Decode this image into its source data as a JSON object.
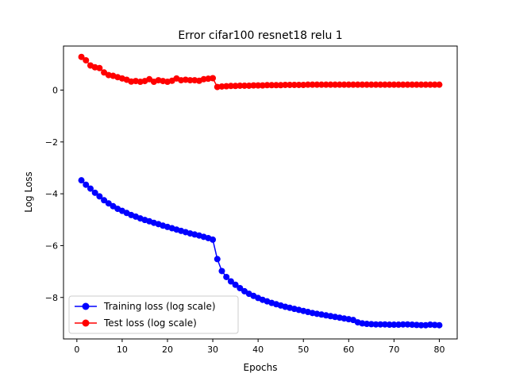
{
  "chart_data": {
    "type": "line",
    "title": "Error cifar100 resnet18 relu 1",
    "xlabel": "Epochs",
    "ylabel": "Log Loss",
    "xlim": [
      -2.95,
      83.95
    ],
    "ylim": [
      -9.6,
      1.7
    ],
    "xticks": [
      0,
      10,
      20,
      30,
      40,
      50,
      60,
      70,
      80
    ],
    "yticks": [
      0,
      -2,
      -4,
      -6,
      -8
    ],
    "ytick_labels": [
      "0",
      "−2",
      "−4",
      "−6",
      "−8"
    ],
    "grid": false,
    "legend_position": "lower-left",
    "x": [
      1,
      2,
      3,
      4,
      5,
      6,
      7,
      8,
      9,
      10,
      11,
      12,
      13,
      14,
      15,
      16,
      17,
      18,
      19,
      20,
      21,
      22,
      23,
      24,
      25,
      26,
      27,
      28,
      29,
      30,
      31,
      32,
      33,
      34,
      35,
      36,
      37,
      38,
      39,
      40,
      41,
      42,
      43,
      44,
      45,
      46,
      47,
      48,
      49,
      50,
      51,
      52,
      53,
      54,
      55,
      56,
      57,
      58,
      59,
      60,
      61,
      62,
      63,
      64,
      65,
      66,
      67,
      68,
      69,
      70,
      71,
      72,
      73,
      74,
      75,
      76,
      77,
      78,
      79,
      80
    ],
    "series": [
      {
        "name": "Training loss (log scale)",
        "color": "#0000ff",
        "values": [
          -3.48,
          -3.65,
          -3.8,
          -3.96,
          -4.1,
          -4.25,
          -4.37,
          -4.48,
          -4.58,
          -4.66,
          -4.74,
          -4.82,
          -4.88,
          -4.95,
          -5.01,
          -5.06,
          -5.12,
          -5.17,
          -5.23,
          -5.28,
          -5.33,
          -5.38,
          -5.43,
          -5.48,
          -5.53,
          -5.57,
          -5.61,
          -5.66,
          -5.71,
          -5.77,
          -6.52,
          -6.98,
          -7.21,
          -7.38,
          -7.51,
          -7.64,
          -7.76,
          -7.86,
          -7.94,
          -8.02,
          -8.09,
          -8.15,
          -8.21,
          -8.26,
          -8.31,
          -8.36,
          -8.4,
          -8.44,
          -8.48,
          -8.52,
          -8.56,
          -8.6,
          -8.63,
          -8.66,
          -8.69,
          -8.72,
          -8.75,
          -8.78,
          -8.81,
          -8.84,
          -8.87,
          -8.96,
          -9.0,
          -9.02,
          -9.03,
          -9.04,
          -9.04,
          -9.04,
          -9.05,
          -9.05,
          -9.05,
          -9.04,
          -9.04,
          -9.05,
          -9.06,
          -9.07,
          -9.07,
          -9.05,
          -9.06,
          -9.07
        ]
      },
      {
        "name": "Test loss (log scale)",
        "color": "#ff0000",
        "values": [
          1.28,
          1.15,
          0.95,
          0.88,
          0.85,
          0.68,
          0.58,
          0.55,
          0.5,
          0.45,
          0.4,
          0.33,
          0.35,
          0.32,
          0.35,
          0.42,
          0.32,
          0.38,
          0.35,
          0.32,
          0.36,
          0.45,
          0.38,
          0.4,
          0.38,
          0.38,
          0.36,
          0.42,
          0.44,
          0.46,
          0.12,
          0.14,
          0.15,
          0.16,
          0.16,
          0.17,
          0.17,
          0.17,
          0.18,
          0.18,
          0.18,
          0.19,
          0.19,
          0.19,
          0.19,
          0.2,
          0.2,
          0.2,
          0.2,
          0.2,
          0.21,
          0.21,
          0.21,
          0.21,
          0.21,
          0.21,
          0.21,
          0.21,
          0.21,
          0.21,
          0.21,
          0.21,
          0.21,
          0.21,
          0.21,
          0.21,
          0.21,
          0.21,
          0.21,
          0.21,
          0.21,
          0.21,
          0.21,
          0.21,
          0.21,
          0.21,
          0.21,
          0.21,
          0.21,
          0.21
        ]
      }
    ]
  }
}
